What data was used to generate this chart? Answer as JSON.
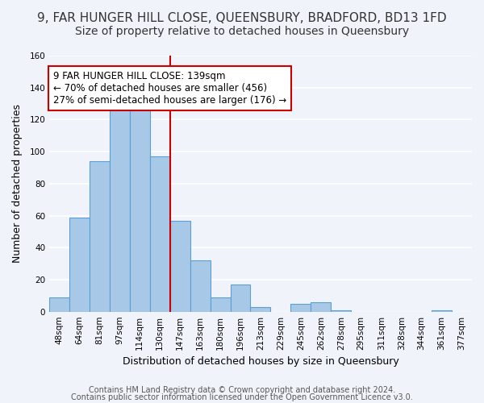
{
  "title_line1": "9, FAR HUNGER HILL CLOSE, QUEENSBURY, BRADFORD, BD13 1FD",
  "title_line2": "Size of property relative to detached houses in Queensbury",
  "xlabel": "Distribution of detached houses by size in Queensbury",
  "ylabel": "Number of detached properties",
  "bin_labels": [
    "48sqm",
    "64sqm",
    "81sqm",
    "97sqm",
    "114sqm",
    "130sqm",
    "147sqm",
    "163sqm",
    "180sqm",
    "196sqm",
    "213sqm",
    "229sqm",
    "245sqm",
    "262sqm",
    "278sqm",
    "295sqm",
    "311sqm",
    "328sqm",
    "344sqm",
    "361sqm",
    "377sqm"
  ],
  "bar_heights": [
    9,
    59,
    94,
    130,
    131,
    97,
    57,
    32,
    9,
    17,
    3,
    0,
    5,
    6,
    1,
    0,
    0,
    0,
    0,
    1,
    0
  ],
  "bar_color": "#a8c8e8",
  "bar_edge_color": "#5a9fd4",
  "vline_x": 5.5,
  "vline_color": "#cc0000",
  "annotation_text": "9 FAR HUNGER HILL CLOSE: 139sqm\n← 70% of detached houses are smaller (456)\n27% of semi-detached houses are larger (176) →",
  "annotation_box_edgecolor": "#cc0000",
  "annotation_box_facecolor": "#ffffff",
  "ylim": [
    0,
    160
  ],
  "yticks": [
    0,
    20,
    40,
    60,
    80,
    100,
    120,
    140,
    160
  ],
  "footer_line1": "Contains HM Land Registry data © Crown copyright and database right 2024.",
  "footer_line2": "Contains public sector information licensed under the Open Government Licence v3.0.",
  "background_color": "#f0f4fa",
  "grid_color": "#ffffff",
  "title_fontsize": 11,
  "subtitle_fontsize": 10,
  "axis_label_fontsize": 9,
  "tick_fontsize": 7.5,
  "footer_fontsize": 7
}
